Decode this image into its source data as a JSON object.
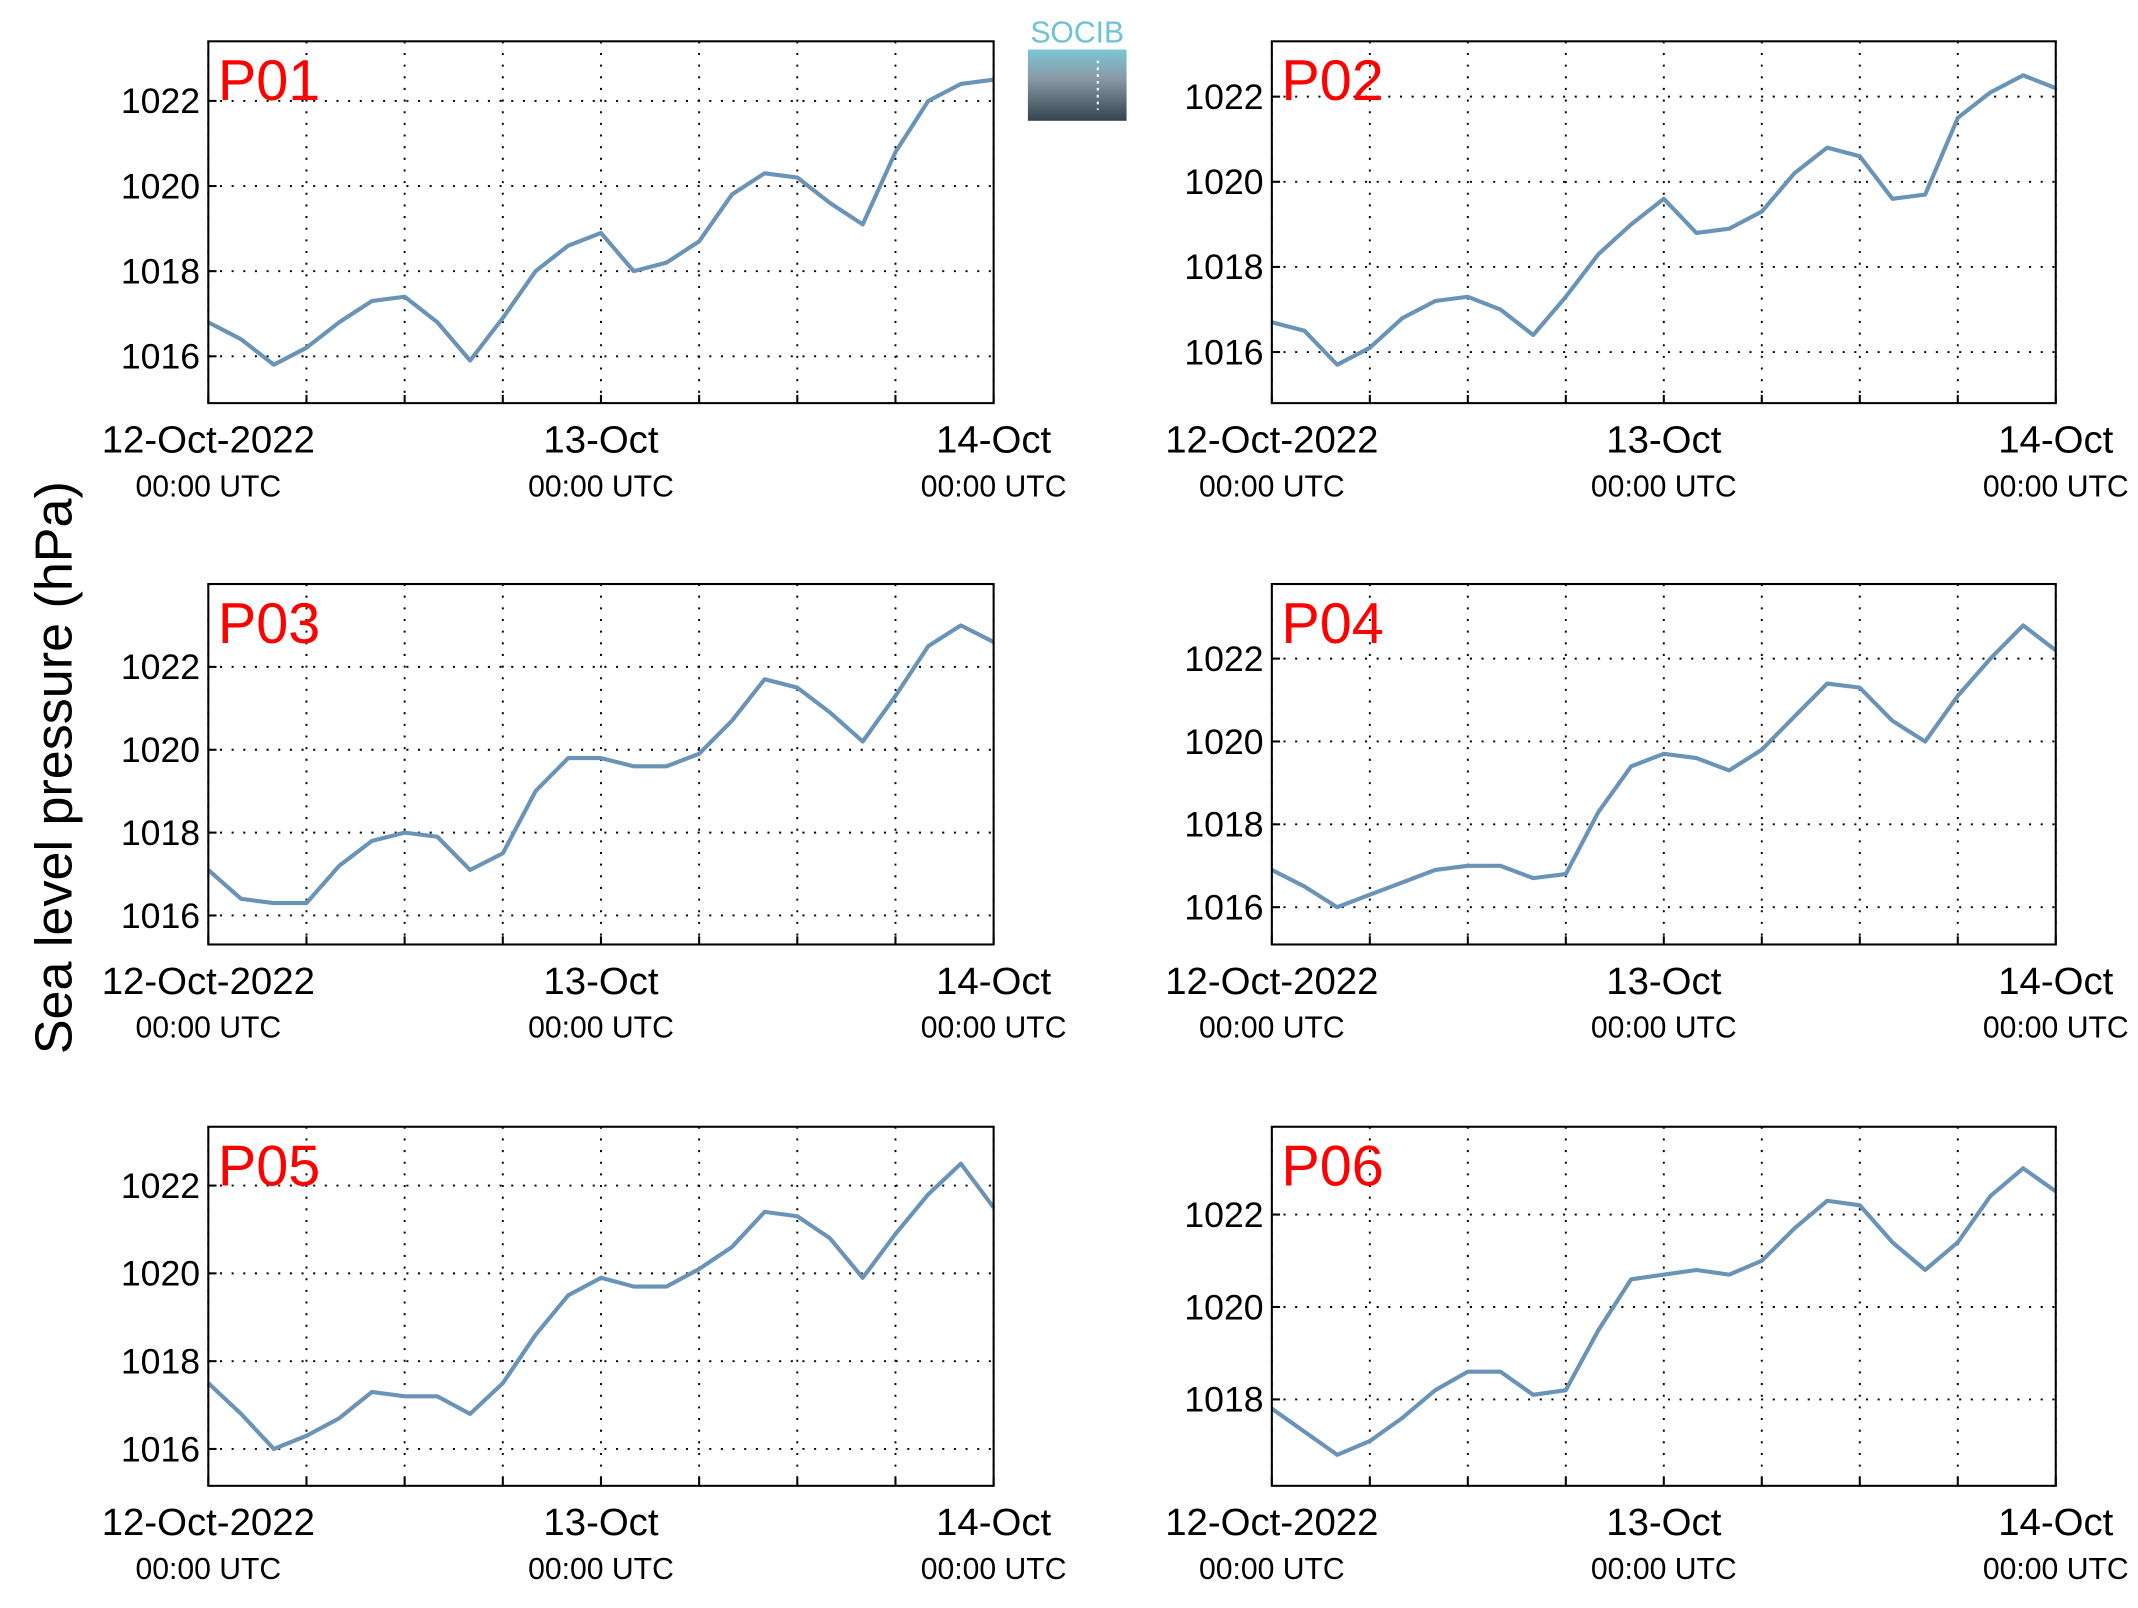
{
  "ylabel": "Sea level pressure (hPa)",
  "logo": "SOCIB",
  "chart_data": [
    {
      "type": "line",
      "title": "P01",
      "color": "#6a93b8",
      "grid": true,
      "ylim": [
        1014.9,
        1023.4
      ],
      "yticks": [
        1016,
        1018,
        1020,
        1022
      ],
      "xticks": [
        {
          "value": "2022-10-12T00:00",
          "label": "12-Oct-2022",
          "sublabel": "00:00 UTC"
        },
        {
          "value": "2022-10-12T06:00"
        },
        {
          "value": "2022-10-12T12:00"
        },
        {
          "value": "2022-10-12T18:00"
        },
        {
          "value": "2022-10-13T00:00",
          "label": "13-Oct",
          "sublabel": "00:00 UTC"
        },
        {
          "value": "2022-10-13T06:00"
        },
        {
          "value": "2022-10-13T12:00"
        },
        {
          "value": "2022-10-13T18:00"
        },
        {
          "value": "2022-10-14T00:00",
          "label": "14-Oct",
          "sublabel": "00:00 UTC"
        }
      ],
      "x": [
        "2022-10-12T00:00",
        "2022-10-12T02:00",
        "2022-10-12T04:00",
        "2022-10-12T06:00",
        "2022-10-12T08:00",
        "2022-10-12T10:00",
        "2022-10-12T12:00",
        "2022-10-12T14:00",
        "2022-10-12T16:00",
        "2022-10-12T18:00",
        "2022-10-12T20:00",
        "2022-10-12T22:00",
        "2022-10-13T00:00",
        "2022-10-13T02:00",
        "2022-10-13T04:00",
        "2022-10-13T06:00",
        "2022-10-13T08:00",
        "2022-10-13T10:00",
        "2022-10-13T12:00",
        "2022-10-13T14:00",
        "2022-10-13T16:00",
        "2022-10-13T18:00",
        "2022-10-13T20:00",
        "2022-10-13T22:00",
        "2022-10-14T00:00"
      ],
      "values": [
        1016.8,
        1016.4,
        1015.8,
        1016.2,
        1016.8,
        1017.3,
        1017.4,
        1016.8,
        1015.9,
        1016.9,
        1018.0,
        1018.6,
        1018.9,
        1018.0,
        1018.2,
        1018.7,
        1019.8,
        1020.3,
        1020.2,
        1019.6,
        1019.1,
        1020.8,
        1022.0,
        1022.4,
        1022.5
      ]
    },
    {
      "type": "line",
      "title": "P02",
      "color": "#6a93b8",
      "grid": true,
      "ylim": [
        1014.8,
        1023.3
      ],
      "yticks": [
        1016,
        1018,
        1020,
        1022
      ],
      "xticks": [
        {
          "value": "2022-10-12T00:00",
          "label": "12-Oct-2022",
          "sublabel": "00:00 UTC"
        },
        {
          "value": "2022-10-12T06:00"
        },
        {
          "value": "2022-10-12T12:00"
        },
        {
          "value": "2022-10-12T18:00"
        },
        {
          "value": "2022-10-13T00:00",
          "label": "13-Oct",
          "sublabel": "00:00 UTC"
        },
        {
          "value": "2022-10-13T06:00"
        },
        {
          "value": "2022-10-13T12:00"
        },
        {
          "value": "2022-10-13T18:00"
        },
        {
          "value": "2022-10-14T00:00",
          "label": "14-Oct",
          "sublabel": "00:00 UTC"
        }
      ],
      "x": [
        "2022-10-12T00:00",
        "2022-10-12T02:00",
        "2022-10-12T04:00",
        "2022-10-12T06:00",
        "2022-10-12T08:00",
        "2022-10-12T10:00",
        "2022-10-12T12:00",
        "2022-10-12T14:00",
        "2022-10-12T16:00",
        "2022-10-12T18:00",
        "2022-10-12T20:00",
        "2022-10-12T22:00",
        "2022-10-13T00:00",
        "2022-10-13T02:00",
        "2022-10-13T04:00",
        "2022-10-13T06:00",
        "2022-10-13T08:00",
        "2022-10-13T10:00",
        "2022-10-13T12:00",
        "2022-10-13T14:00",
        "2022-10-13T16:00",
        "2022-10-13T18:00",
        "2022-10-13T20:00",
        "2022-10-13T22:00",
        "2022-10-14T00:00"
      ],
      "values": [
        1016.7,
        1016.5,
        1015.7,
        1016.1,
        1016.8,
        1017.2,
        1017.3,
        1017.0,
        1016.4,
        1017.3,
        1018.3,
        1019.0,
        1019.6,
        1018.8,
        1018.9,
        1019.3,
        1020.2,
        1020.8,
        1020.6,
        1019.6,
        1019.7,
        1021.5,
        1022.1,
        1022.5,
        1022.2
      ]
    },
    {
      "type": "line",
      "title": "P03",
      "color": "#6a93b8",
      "grid": true,
      "ylim": [
        1015.3,
        1024.0
      ],
      "yticks": [
        1016,
        1018,
        1020,
        1022
      ],
      "xticks": [
        {
          "value": "2022-10-12T00:00",
          "label": "12-Oct-2022",
          "sublabel": "00:00 UTC"
        },
        {
          "value": "2022-10-12T06:00"
        },
        {
          "value": "2022-10-12T12:00"
        },
        {
          "value": "2022-10-12T18:00"
        },
        {
          "value": "2022-10-13T00:00",
          "label": "13-Oct",
          "sublabel": "00:00 UTC"
        },
        {
          "value": "2022-10-13T06:00"
        },
        {
          "value": "2022-10-13T12:00"
        },
        {
          "value": "2022-10-13T18:00"
        },
        {
          "value": "2022-10-14T00:00",
          "label": "14-Oct",
          "sublabel": "00:00 UTC"
        }
      ],
      "x": [
        "2022-10-12T00:00",
        "2022-10-12T02:00",
        "2022-10-12T04:00",
        "2022-10-12T06:00",
        "2022-10-12T08:00",
        "2022-10-12T10:00",
        "2022-10-12T12:00",
        "2022-10-12T14:00",
        "2022-10-12T16:00",
        "2022-10-12T18:00",
        "2022-10-12T20:00",
        "2022-10-12T22:00",
        "2022-10-13T00:00",
        "2022-10-13T02:00",
        "2022-10-13T04:00",
        "2022-10-13T06:00",
        "2022-10-13T08:00",
        "2022-10-13T10:00",
        "2022-10-13T12:00",
        "2022-10-13T14:00",
        "2022-10-13T16:00",
        "2022-10-13T18:00",
        "2022-10-13T20:00",
        "2022-10-13T22:00",
        "2022-10-14T00:00"
      ],
      "values": [
        1017.1,
        1016.4,
        1016.3,
        1016.3,
        1017.2,
        1017.8,
        1018.0,
        1017.9,
        1017.1,
        1017.5,
        1019.0,
        1019.8,
        1019.8,
        1019.6,
        1019.6,
        1019.9,
        1020.7,
        1021.7,
        1021.5,
        1020.9,
        1020.2,
        1021.3,
        1022.5,
        1023.0,
        1022.6
      ]
    },
    {
      "type": "line",
      "title": "P04",
      "color": "#6a93b8",
      "grid": true,
      "ylim": [
        1015.1,
        1023.8
      ],
      "yticks": [
        1016,
        1018,
        1020,
        1022
      ],
      "xticks": [
        {
          "value": "2022-10-12T00:00",
          "label": "12-Oct-2022",
          "sublabel": "00:00 UTC"
        },
        {
          "value": "2022-10-12T06:00"
        },
        {
          "value": "2022-10-12T12:00"
        },
        {
          "value": "2022-10-12T18:00"
        },
        {
          "value": "2022-10-13T00:00",
          "label": "13-Oct",
          "sublabel": "00:00 UTC"
        },
        {
          "value": "2022-10-13T06:00"
        },
        {
          "value": "2022-10-13T12:00"
        },
        {
          "value": "2022-10-13T18:00"
        },
        {
          "value": "2022-10-14T00:00",
          "label": "14-Oct",
          "sublabel": "00:00 UTC"
        }
      ],
      "x": [
        "2022-10-12T00:00",
        "2022-10-12T02:00",
        "2022-10-12T04:00",
        "2022-10-12T06:00",
        "2022-10-12T08:00",
        "2022-10-12T10:00",
        "2022-10-12T12:00",
        "2022-10-12T14:00",
        "2022-10-12T16:00",
        "2022-10-12T18:00",
        "2022-10-12T20:00",
        "2022-10-12T22:00",
        "2022-10-13T00:00",
        "2022-10-13T02:00",
        "2022-10-13T04:00",
        "2022-10-13T06:00",
        "2022-10-13T08:00",
        "2022-10-13T10:00",
        "2022-10-13T12:00",
        "2022-10-13T14:00",
        "2022-10-13T16:00",
        "2022-10-13T18:00",
        "2022-10-13T20:00",
        "2022-10-13T22:00",
        "2022-10-14T00:00"
      ],
      "values": [
        1016.9,
        1016.5,
        1016.0,
        1016.3,
        1016.6,
        1016.9,
        1017.0,
        1017.0,
        1016.7,
        1016.8,
        1018.3,
        1019.4,
        1019.7,
        1019.6,
        1019.3,
        1019.8,
        1020.6,
        1021.4,
        1021.3,
        1020.5,
        1020.0,
        1021.1,
        1022.0,
        1022.8,
        1022.2
      ]
    },
    {
      "type": "line",
      "title": "P05",
      "color": "#6a93b8",
      "grid": true,
      "ylim": [
        1015.16,
        1023.34
      ],
      "yticks": [
        1016,
        1018,
        1020,
        1022
      ],
      "xticks": [
        {
          "value": "2022-10-12T00:00",
          "label": "12-Oct-2022",
          "sublabel": "00:00 UTC"
        },
        {
          "value": "2022-10-12T06:00"
        },
        {
          "value": "2022-10-12T12:00"
        },
        {
          "value": "2022-10-12T18:00"
        },
        {
          "value": "2022-10-13T00:00",
          "label": "13-Oct",
          "sublabel": "00:00 UTC"
        },
        {
          "value": "2022-10-13T06:00"
        },
        {
          "value": "2022-10-13T12:00"
        },
        {
          "value": "2022-10-13T18:00"
        },
        {
          "value": "2022-10-14T00:00",
          "label": "14-Oct",
          "sublabel": "00:00 UTC"
        }
      ],
      "x": [
        "2022-10-12T00:00",
        "2022-10-12T02:00",
        "2022-10-12T04:00",
        "2022-10-12T06:00",
        "2022-10-12T08:00",
        "2022-10-12T10:00",
        "2022-10-12T12:00",
        "2022-10-12T14:00",
        "2022-10-12T16:00",
        "2022-10-12T18:00",
        "2022-10-12T20:00",
        "2022-10-12T22:00",
        "2022-10-13T00:00",
        "2022-10-13T02:00",
        "2022-10-13T04:00",
        "2022-10-13T06:00",
        "2022-10-13T08:00",
        "2022-10-13T10:00",
        "2022-10-13T12:00",
        "2022-10-13T14:00",
        "2022-10-13T16:00",
        "2022-10-13T18:00",
        "2022-10-13T20:00",
        "2022-10-13T22:00",
        "2022-10-14T00:00"
      ],
      "values": [
        1017.5,
        1016.8,
        1016.0,
        1016.3,
        1016.7,
        1017.3,
        1017.2,
        1017.2,
        1016.8,
        1017.5,
        1018.6,
        1019.5,
        1019.9,
        1019.7,
        1019.7,
        1020.1,
        1020.6,
        1021.4,
        1021.3,
        1020.8,
        1019.9,
        1020.9,
        1021.8,
        1022.5,
        1021.5
      ]
    },
    {
      "type": "line",
      "title": "P06",
      "color": "#6a93b8",
      "grid": true,
      "ylim": [
        1016.13,
        1023.9
      ],
      "yticks": [
        1018,
        1020,
        1022
      ],
      "xticks": [
        {
          "value": "2022-10-12T00:00",
          "label": "12-Oct-2022",
          "sublabel": "00:00 UTC"
        },
        {
          "value": "2022-10-12T06:00"
        },
        {
          "value": "2022-10-12T12:00"
        },
        {
          "value": "2022-10-12T18:00"
        },
        {
          "value": "2022-10-13T00:00",
          "label": "13-Oct",
          "sublabel": "00:00 UTC"
        },
        {
          "value": "2022-10-13T06:00"
        },
        {
          "value": "2022-10-13T12:00"
        },
        {
          "value": "2022-10-13T18:00"
        },
        {
          "value": "2022-10-14T00:00",
          "label": "14-Oct",
          "sublabel": "00:00 UTC"
        }
      ],
      "x": [
        "2022-10-12T00:00",
        "2022-10-12T02:00",
        "2022-10-12T04:00",
        "2022-10-12T06:00",
        "2022-10-12T08:00",
        "2022-10-12T10:00",
        "2022-10-12T12:00",
        "2022-10-12T14:00",
        "2022-10-12T16:00",
        "2022-10-12T18:00",
        "2022-10-12T20:00",
        "2022-10-12T22:00",
        "2022-10-13T00:00",
        "2022-10-13T02:00",
        "2022-10-13T04:00",
        "2022-10-13T06:00",
        "2022-10-13T08:00",
        "2022-10-13T10:00",
        "2022-10-13T12:00",
        "2022-10-13T14:00",
        "2022-10-13T16:00",
        "2022-10-13T18:00",
        "2022-10-13T20:00",
        "2022-10-13T22:00",
        "2022-10-14T00:00"
      ],
      "values": [
        1017.8,
        1017.3,
        1016.8,
        1017.1,
        1017.6,
        1018.2,
        1018.6,
        1018.6,
        1018.1,
        1018.2,
        1019.5,
        1020.6,
        1020.7,
        1020.8,
        1020.7,
        1021.0,
        1021.7,
        1022.3,
        1022.2,
        1021.4,
        1020.8,
        1021.4,
        1022.4,
        1023.0,
        1022.5
      ]
    }
  ]
}
